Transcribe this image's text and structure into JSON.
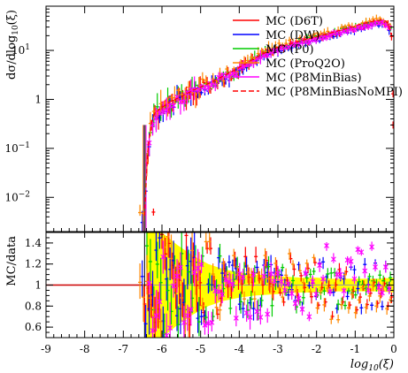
{
  "chart_data": {
    "type": "scatter",
    "panels": [
      {
        "name": "main",
        "ylabel": "dσ/dlog10(ξ)",
        "yscale": "log",
        "ylim": [
          0.002,
          80
        ],
        "yticks": [
          {
            "value": 0.01,
            "base": "10",
            "exp": "−2"
          },
          {
            "value": 0.1,
            "base": "10",
            "exp": "−1"
          },
          {
            "value": 1,
            "base": "1",
            "exp": ""
          },
          {
            "value": 10,
            "base": "10",
            "exp": "1"
          }
        ]
      },
      {
        "name": "ratio",
        "ylabel": "MC/data",
        "yscale": "linear",
        "ylim": [
          0.5,
          1.5
        ],
        "yticks": [
          {
            "value": 0.6,
            "label": "0.6"
          },
          {
            "value": 0.8,
            "label": "0.8"
          },
          {
            "value": 1.0,
            "label": "1"
          },
          {
            "value": 1.2,
            "label": "1.2"
          },
          {
            "value": 1.4,
            "label": "1.4"
          }
        ]
      }
    ],
    "x": {
      "label": "log10(ξ)",
      "xlim": [
        -9,
        0
      ],
      "ticks": [
        {
          "value": -9,
          "label": "-9"
        },
        {
          "value": -8,
          "label": "-8"
        },
        {
          "value": -7,
          "label": "-7"
        },
        {
          "value": -6,
          "label": "-6"
        },
        {
          "value": -5,
          "label": "-5"
        },
        {
          "value": -4,
          "label": "-4"
        },
        {
          "value": -3,
          "label": "-3"
        },
        {
          "value": -2,
          "label": "-2"
        },
        {
          "value": -1,
          "label": "-1"
        },
        {
          "value": 0,
          "label": "0"
        }
      ]
    },
    "legend_position": "top-right",
    "series": [
      {
        "name": "MC (D6T)",
        "color": "#ff0000",
        "style": "solid",
        "mark": "cross",
        "offset": 0.0,
        "lead": 1.0,
        "jitter": 0.22,
        "ratio_bias": 0.05
      },
      {
        "name": "MC (DW)",
        "color": "#0000ff",
        "style": "solid",
        "mark": "cross",
        "offset": -0.06,
        "lead": 0.9,
        "jitter": 0.18,
        "ratio_bias": 0.0
      },
      {
        "name": "MC (P0)",
        "color": "#00cc00",
        "style": "solid",
        "mark": "cross",
        "offset": 0.06,
        "lead": 1.05,
        "jitter": 0.2,
        "ratio_bias": -0.02
      },
      {
        "name": "MC (ProQ2O)",
        "color": "#ff8800",
        "style": "solid",
        "mark": "cross",
        "offset": -0.12,
        "lead": 1.15,
        "jitter": 0.25,
        "ratio_bias": 0.08
      },
      {
        "name": "MC (P8MinBias)",
        "color": "#ff00ff",
        "style": "solid",
        "mark": "star",
        "offset": 0.12,
        "lead": 0.95,
        "jitter": 0.16,
        "ratio_bias": -0.1
      },
      {
        "name": "MC (P8MinBiasNoMPI)",
        "color": "#ff0000",
        "style": "dashed",
        "mark": "none",
        "offset": 0.0,
        "lead": 1.0,
        "jitter": 0.0,
        "ratio_bias": 0.0
      }
    ],
    "reference_curve": {
      "points": [
        [
          -6.45,
          0.004
        ],
        [
          -6.4,
          0.05
        ],
        [
          -6.3,
          0.25
        ],
        [
          -6.2,
          0.5
        ],
        [
          -6.0,
          0.65
        ],
        [
          -5.8,
          0.85
        ],
        [
          -5.6,
          1.0
        ],
        [
          -5.4,
          1.2
        ],
        [
          -5.2,
          1.45
        ],
        [
          -5.0,
          1.7
        ],
        [
          -4.8,
          2.0
        ],
        [
          -4.6,
          2.4
        ],
        [
          -4.4,
          2.9
        ],
        [
          -4.2,
          3.5
        ],
        [
          -4.0,
          4.3
        ],
        [
          -3.8,
          5.3
        ],
        [
          -3.6,
          6.6
        ],
        [
          -3.4,
          8.0
        ],
        [
          -3.2,
          9.6
        ],
        [
          -3.0,
          11.0
        ],
        [
          -2.8,
          12.3
        ],
        [
          -2.6,
          13.6
        ],
        [
          -2.4,
          15.0
        ],
        [
          -2.2,
          16.5
        ],
        [
          -2.0,
          18.0
        ],
        [
          -1.8,
          20.0
        ],
        [
          -1.6,
          22.0
        ],
        [
          -1.4,
          24.5
        ],
        [
          -1.2,
          27.0
        ],
        [
          -1.0,
          29.5
        ],
        [
          -0.8,
          32.0
        ],
        [
          -0.6,
          35.0
        ],
        [
          -0.4,
          37.5
        ],
        [
          -0.3,
          38.0
        ],
        [
          -0.2,
          36.0
        ],
        [
          -0.1,
          28.0
        ],
        [
          -0.03,
          13.0
        ]
      ],
      "outliers": [
        [
          -6.22,
          0.005
        ],
        [
          -0.02,
          0.3
        ],
        [
          -0.02,
          1.3
        ]
      ]
    },
    "ratio_band": {
      "color": "#ffff00",
      "points": [
        [
          -6.4,
          0.5,
          1.5
        ],
        [
          -6.0,
          0.5,
          1.5
        ],
        [
          -5.6,
          0.62,
          1.38
        ],
        [
          -5.2,
          0.72,
          1.28
        ],
        [
          -4.8,
          0.8,
          1.2
        ],
        [
          -4.4,
          0.85,
          1.15
        ],
        [
          -4.0,
          0.88,
          1.12
        ],
        [
          -3.6,
          0.9,
          1.1
        ],
        [
          -3.2,
          0.91,
          1.09
        ],
        [
          -2.8,
          0.92,
          1.08
        ],
        [
          -2.4,
          0.93,
          1.07
        ],
        [
          -2.0,
          0.93,
          1.07
        ],
        [
          -1.6,
          0.94,
          1.06
        ],
        [
          -1.2,
          0.94,
          1.06
        ],
        [
          -0.8,
          0.94,
          1.06
        ],
        [
          -0.4,
          0.94,
          1.06
        ],
        [
          0.0,
          0.93,
          1.07
        ]
      ]
    },
    "ratio_line": {
      "value": 1.0,
      "color": "#cc0000",
      "x_end": -6.3
    }
  }
}
